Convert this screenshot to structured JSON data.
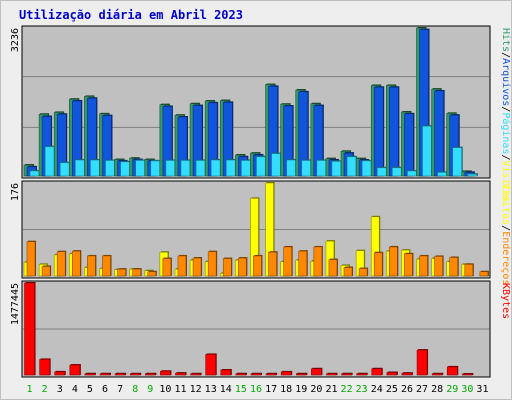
{
  "title": "Utilização diária em Abril 2023",
  "chart_data": [
    {
      "type": "bar",
      "panel": "top",
      "ymax_label": "3236",
      "ylim": [
        0,
        3236
      ],
      "right_labels": [
        {
          "text": "Hits",
          "color": "#339966"
        },
        {
          "text": "/",
          "color": "#000000"
        },
        {
          "text": "Arquivos",
          "color": "#1155dd"
        },
        {
          "text": "/",
          "color": "#000000"
        },
        {
          "text": "Páginas",
          "color": "#33ddff"
        },
        {
          "text": "/",
          "color": "#000000"
        },
        {
          "text": "Visitas",
          "color": "#ffff00"
        }
      ],
      "series": [
        {
          "name": "Hits",
          "color": "#339966",
          "values": [
            240,
            1350,
            1390,
            1680,
            1740,
            1360,
            360,
            390,
            360,
            1560,
            1330,
            1580,
            1640,
            1650,
            460,
            500,
            2000,
            1570,
            1880,
            1580,
            380,
            540,
            380,
            1980,
            1980,
            1400,
            3236,
            1900,
            1370,
            100,
            0
          ]
        },
        {
          "name": "Arquivos",
          "color": "#1155dd",
          "values": [
            200,
            1300,
            1350,
            1640,
            1700,
            1320,
            330,
            360,
            330,
            1520,
            1290,
            1540,
            1600,
            1610,
            420,
            460,
            1960,
            1530,
            1840,
            1540,
            350,
            500,
            350,
            1940,
            1940,
            1360,
            3200,
            1860,
            1330,
            80,
            0
          ]
        },
        {
          "name": "Páginas",
          "color": "#33ddff",
          "values": [
            110,
            640,
            290,
            350,
            350,
            340,
            310,
            340,
            330,
            340,
            340,
            340,
            350,
            350,
            340,
            420,
            490,
            350,
            340,
            340,
            320,
            420,
            330,
            180,
            180,
            110,
            1090,
            80,
            620,
            40,
            0
          ]
        }
      ]
    },
    {
      "type": "bar",
      "panel": "middle",
      "ymax_label": "176",
      "ylim": [
        0,
        176
      ],
      "right_labels": [
        {
          "text": "Visitas",
          "color": "#ffff00"
        },
        {
          "text": "/",
          "color": "#000000"
        },
        {
          "text": "Endereços",
          "color": "#ff8800"
        }
      ],
      "series": [
        {
          "name": "Visitas",
          "color": "#ffff00",
          "values": [
            26,
            22,
            40,
            42,
            16,
            14,
            12,
            13,
            10,
            45,
            13,
            30,
            27,
            5,
            30,
            147,
            176,
            27,
            30,
            28,
            66,
            20,
            48,
            112,
            47,
            49,
            32,
            33,
            27,
            22,
            0
          ]
        },
        {
          "name": "Endereços",
          "color": "#ff8800",
          "values": [
            65,
            18,
            46,
            47,
            38,
            38,
            13,
            13,
            8,
            33,
            38,
            34,
            46,
            33,
            34,
            38,
            45,
            55,
            47,
            55,
            31,
            16,
            14,
            44,
            55,
            42,
            38,
            37,
            35,
            22,
            8
          ]
        }
      ]
    },
    {
      "type": "bar",
      "panel": "bottom",
      "ymax_label": "1477445",
      "ylim": [
        0,
        1477445
      ],
      "right_labels": [
        {
          "text": "KBytes",
          "color": "#ff0000"
        }
      ],
      "series": [
        {
          "name": "KBytes",
          "color": "#ff0000",
          "values": [
            1477445,
            250000,
            50000,
            160000,
            20000,
            20000,
            20000,
            20000,
            20000,
            60000,
            30000,
            20000,
            330000,
            80000,
            20000,
            20000,
            20000,
            50000,
            20000,
            100000,
            20000,
            20000,
            20000,
            100000,
            40000,
            30000,
            400000,
            20000,
            130000,
            10000,
            0
          ]
        }
      ]
    }
  ],
  "days": [
    {
      "label": "1",
      "weekend": true
    },
    {
      "label": "2",
      "weekend": true
    },
    {
      "label": "3",
      "weekend": false
    },
    {
      "label": "4",
      "weekend": false
    },
    {
      "label": "5",
      "weekend": false
    },
    {
      "label": "6",
      "weekend": false
    },
    {
      "label": "7",
      "weekend": false
    },
    {
      "label": "8",
      "weekend": true
    },
    {
      "label": "9",
      "weekend": true
    },
    {
      "label": "10",
      "weekend": false
    },
    {
      "label": "11",
      "weekend": false
    },
    {
      "label": "12",
      "weekend": false
    },
    {
      "label": "13",
      "weekend": false
    },
    {
      "label": "14",
      "weekend": false
    },
    {
      "label": "15",
      "weekend": true
    },
    {
      "label": "16",
      "weekend": true
    },
    {
      "label": "17",
      "weekend": false
    },
    {
      "label": "18",
      "weekend": false
    },
    {
      "label": "19",
      "weekend": false
    },
    {
      "label": "20",
      "weekend": false
    },
    {
      "label": "21",
      "weekend": false
    },
    {
      "label": "22",
      "weekend": true
    },
    {
      "label": "23",
      "weekend": true
    },
    {
      "label": "24",
      "weekend": false
    },
    {
      "label": "25",
      "weekend": false
    },
    {
      "label": "26",
      "weekend": false
    },
    {
      "label": "27",
      "weekend": false
    },
    {
      "label": "28",
      "weekend": false
    },
    {
      "label": "29",
      "weekend": true
    },
    {
      "label": "30",
      "weekend": true
    },
    {
      "label": "31",
      "weekend": false
    }
  ],
  "colors": {
    "plot_bg": "#c0c0c0",
    "weekday_label": "#000000",
    "weekend_label": "#00aa00",
    "title": "#0000cc"
  }
}
